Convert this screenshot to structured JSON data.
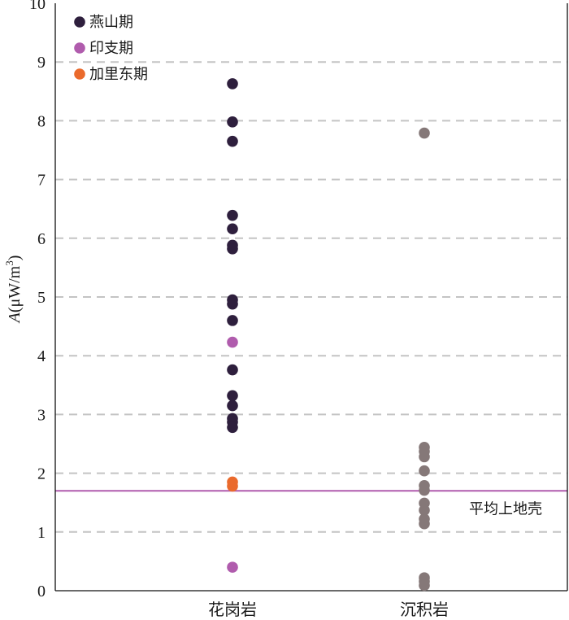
{
  "chart_data": {
    "type": "scatter",
    "xlabel": "",
    "ylabel_italic": "A",
    "ylabel_rest": "(μW/m",
    "ylabel_sup": "3",
    "ylabel_close": ")",
    "ylim": [
      0,
      10
    ],
    "yticks": [
      "0",
      "1",
      "2",
      "3",
      "4",
      "5",
      "6",
      "7",
      "8",
      "9",
      "10"
    ],
    "grid": "horizontal-dashed",
    "legend_position": "top-left",
    "categories": [
      "花岗岩",
      "沉积岩"
    ],
    "series": [
      {
        "name": "燕山期",
        "color": "#2e1f3d",
        "points": [
          {
            "category": "花岗岩",
            "y": 8.63
          },
          {
            "category": "花岗岩",
            "y": 7.98
          },
          {
            "category": "花岗岩",
            "y": 7.65
          },
          {
            "category": "花岗岩",
            "y": 6.39
          },
          {
            "category": "花岗岩",
            "y": 6.16
          },
          {
            "category": "花岗岩",
            "y": 5.88
          },
          {
            "category": "花岗岩",
            "y": 5.82
          },
          {
            "category": "花岗岩",
            "y": 4.95
          },
          {
            "category": "花岗岩",
            "y": 4.88
          },
          {
            "category": "花岗岩",
            "y": 4.6
          },
          {
            "category": "花岗岩",
            "y": 3.76
          },
          {
            "category": "花岗岩",
            "y": 3.32
          },
          {
            "category": "花岗岩",
            "y": 3.15
          },
          {
            "category": "花岗岩",
            "y": 2.93
          },
          {
            "category": "花岗岩",
            "y": 2.87
          },
          {
            "category": "花岗岩",
            "y": 2.78
          }
        ]
      },
      {
        "name": "印支期",
        "color": "#b05cad",
        "points": [
          {
            "category": "花岗岩",
            "y": 4.23
          },
          {
            "category": "花岗岩",
            "y": 0.4
          }
        ]
      },
      {
        "name": "加里东期",
        "color": "#ea6a2c",
        "points": [
          {
            "category": "花岗岩",
            "y": 1.85
          },
          {
            "category": "花岗岩",
            "y": 1.78
          }
        ]
      },
      {
        "name": "",
        "color": "#857878",
        "points": [
          {
            "category": "沉积岩",
            "y": 7.79
          },
          {
            "category": "沉积岩",
            "y": 2.44
          },
          {
            "category": "沉积岩",
            "y": 2.37
          },
          {
            "category": "沉积岩",
            "y": 2.28
          },
          {
            "category": "沉积岩",
            "y": 2.04
          },
          {
            "category": "沉积岩",
            "y": 1.79
          },
          {
            "category": "沉积岩",
            "y": 1.71
          },
          {
            "category": "沉积岩",
            "y": 1.49
          },
          {
            "category": "沉积岩",
            "y": 1.37
          },
          {
            "category": "沉积岩",
            "y": 1.22
          },
          {
            "category": "沉积岩",
            "y": 1.14
          },
          {
            "category": "沉积岩",
            "y": 0.22
          },
          {
            "category": "沉积岩",
            "y": 0.16
          },
          {
            "category": "沉积岩",
            "y": 0.09
          }
        ]
      }
    ],
    "reference_line": {
      "label": "平均上地壳",
      "y": 1.7,
      "color": "#b05cad"
    }
  }
}
